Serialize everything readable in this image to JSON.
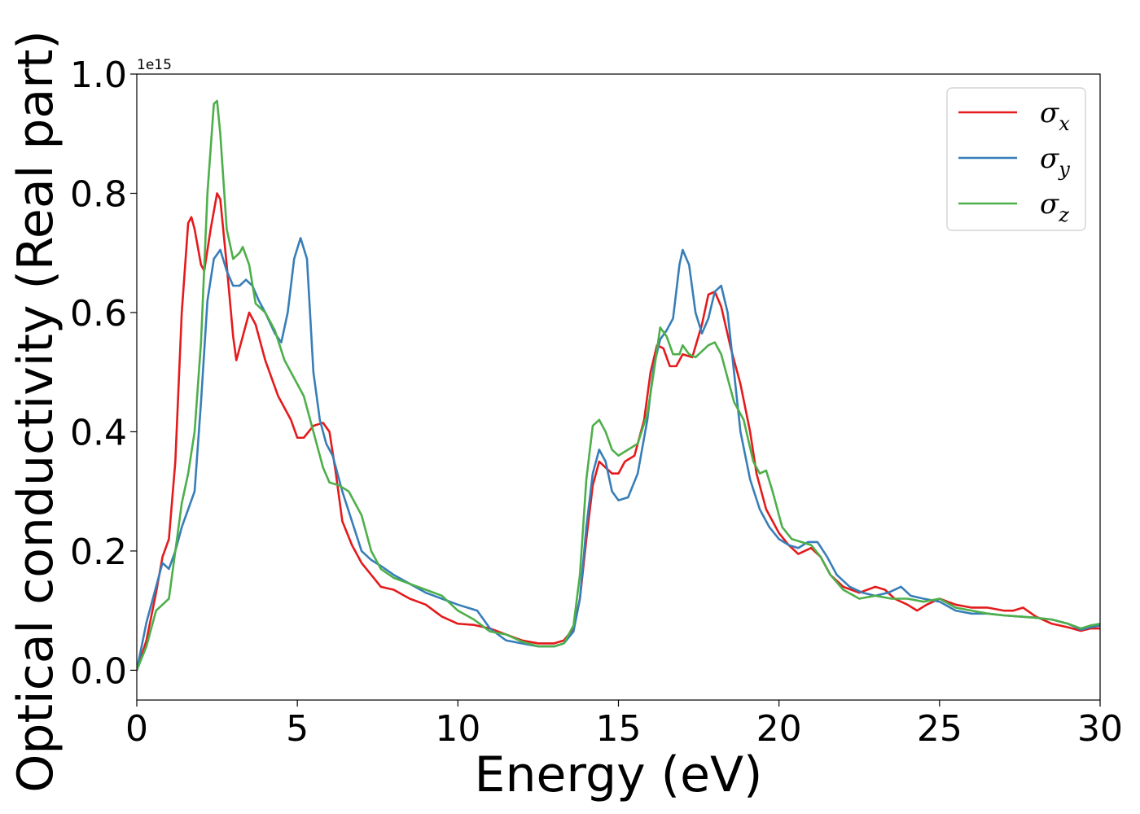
{
  "chart_data": {
    "type": "line",
    "xlabel": "Energy (eV)",
    "ylabel": "Optical conductivity (Real part)",
    "y_offset_label": "1e15",
    "xlim": [
      0,
      30
    ],
    "ylim": [
      -0.05,
      1.0
    ],
    "x_ticks": [
      0,
      5,
      10,
      15,
      20,
      25,
      30
    ],
    "y_ticks": [
      0.0,
      0.2,
      0.4,
      0.6,
      0.8,
      1.0
    ],
    "x_tick_labels": [
      "0",
      "5",
      "10",
      "15",
      "20",
      "25",
      "30"
    ],
    "y_tick_labels": [
      "0.0",
      "0.2",
      "0.4",
      "0.6",
      "0.8",
      "1.0"
    ],
    "grid": false,
    "legend_position": "top-right",
    "series": [
      {
        "name": "σx",
        "legend_base": "σ",
        "legend_sub": "x",
        "color": "#e41a1c",
        "points": [
          [
            0,
            0
          ],
          [
            0.3,
            0.05
          ],
          [
            0.6,
            0.13
          ],
          [
            0.8,
            0.19
          ],
          [
            1.0,
            0.22
          ],
          [
            1.2,
            0.35
          ],
          [
            1.4,
            0.6
          ],
          [
            1.6,
            0.75
          ],
          [
            1.7,
            0.76
          ],
          [
            1.8,
            0.74
          ],
          [
            2.0,
            0.68
          ],
          [
            2.1,
            0.67
          ],
          [
            2.3,
            0.74
          ],
          [
            2.5,
            0.8
          ],
          [
            2.6,
            0.79
          ],
          [
            2.8,
            0.68
          ],
          [
            3.0,
            0.56
          ],
          [
            3.1,
            0.52
          ],
          [
            3.3,
            0.56
          ],
          [
            3.5,
            0.6
          ],
          [
            3.7,
            0.58
          ],
          [
            4.0,
            0.52
          ],
          [
            4.4,
            0.46
          ],
          [
            4.8,
            0.42
          ],
          [
            5.0,
            0.39
          ],
          [
            5.2,
            0.39
          ],
          [
            5.5,
            0.41
          ],
          [
            5.8,
            0.415
          ],
          [
            6.0,
            0.4
          ],
          [
            6.2,
            0.33
          ],
          [
            6.4,
            0.25
          ],
          [
            6.7,
            0.21
          ],
          [
            7.0,
            0.18
          ],
          [
            7.3,
            0.16
          ],
          [
            7.6,
            0.14
          ],
          [
            8.0,
            0.135
          ],
          [
            8.5,
            0.12
          ],
          [
            9.0,
            0.11
          ],
          [
            9.5,
            0.09
          ],
          [
            10.0,
            0.078
          ],
          [
            10.5,
            0.076
          ],
          [
            11.0,
            0.07
          ],
          [
            11.5,
            0.06
          ],
          [
            12.0,
            0.05
          ],
          [
            12.5,
            0.045
          ],
          [
            13.0,
            0.045
          ],
          [
            13.3,
            0.05
          ],
          [
            13.6,
            0.07
          ],
          [
            13.8,
            0.12
          ],
          [
            14.0,
            0.22
          ],
          [
            14.2,
            0.31
          ],
          [
            14.4,
            0.35
          ],
          [
            14.6,
            0.34
          ],
          [
            14.8,
            0.33
          ],
          [
            15.0,
            0.33
          ],
          [
            15.2,
            0.35
          ],
          [
            15.5,
            0.36
          ],
          [
            15.8,
            0.42
          ],
          [
            16.0,
            0.5
          ],
          [
            16.2,
            0.545
          ],
          [
            16.4,
            0.54
          ],
          [
            16.6,
            0.51
          ],
          [
            16.8,
            0.51
          ],
          [
            17.0,
            0.53
          ],
          [
            17.3,
            0.525
          ],
          [
            17.6,
            0.58
          ],
          [
            17.8,
            0.63
          ],
          [
            18.0,
            0.635
          ],
          [
            18.2,
            0.61
          ],
          [
            18.5,
            0.54
          ],
          [
            18.8,
            0.48
          ],
          [
            19.1,
            0.4
          ],
          [
            19.3,
            0.33
          ],
          [
            19.6,
            0.27
          ],
          [
            20.0,
            0.23
          ],
          [
            20.3,
            0.21
          ],
          [
            20.6,
            0.195
          ],
          [
            21.0,
            0.205
          ],
          [
            21.3,
            0.19
          ],
          [
            21.6,
            0.16
          ],
          [
            22.0,
            0.14
          ],
          [
            22.5,
            0.13
          ],
          [
            23.0,
            0.14
          ],
          [
            23.3,
            0.135
          ],
          [
            23.6,
            0.12
          ],
          [
            24.0,
            0.11
          ],
          [
            24.3,
            0.1
          ],
          [
            24.6,
            0.11
          ],
          [
            25.0,
            0.12
          ],
          [
            25.5,
            0.11
          ],
          [
            26.0,
            0.105
          ],
          [
            26.5,
            0.105
          ],
          [
            27.0,
            0.1
          ],
          [
            27.3,
            0.1
          ],
          [
            27.6,
            0.105
          ],
          [
            28.0,
            0.09
          ],
          [
            28.5,
            0.078
          ],
          [
            29.0,
            0.072
          ],
          [
            29.4,
            0.066
          ],
          [
            29.7,
            0.07
          ],
          [
            30.0,
            0.07
          ]
        ]
      },
      {
        "name": "σy",
        "legend_base": "σ",
        "legend_sub": "y",
        "color": "#377eb8",
        "points": [
          [
            0,
            0
          ],
          [
            0.3,
            0.08
          ],
          [
            0.6,
            0.14
          ],
          [
            0.8,
            0.18
          ],
          [
            1.0,
            0.17
          ],
          [
            1.2,
            0.2
          ],
          [
            1.4,
            0.24
          ],
          [
            1.6,
            0.27
          ],
          [
            1.8,
            0.3
          ],
          [
            2.0,
            0.45
          ],
          [
            2.2,
            0.62
          ],
          [
            2.4,
            0.69
          ],
          [
            2.6,
            0.705
          ],
          [
            2.8,
            0.67
          ],
          [
            3.0,
            0.645
          ],
          [
            3.2,
            0.645
          ],
          [
            3.4,
            0.655
          ],
          [
            3.6,
            0.645
          ],
          [
            3.8,
            0.62
          ],
          [
            4.0,
            0.6
          ],
          [
            4.3,
            0.565
          ],
          [
            4.5,
            0.55
          ],
          [
            4.7,
            0.6
          ],
          [
            4.9,
            0.69
          ],
          [
            5.1,
            0.725
          ],
          [
            5.3,
            0.69
          ],
          [
            5.5,
            0.5
          ],
          [
            5.7,
            0.42
          ],
          [
            5.9,
            0.38
          ],
          [
            6.1,
            0.36
          ],
          [
            6.4,
            0.3
          ],
          [
            6.7,
            0.25
          ],
          [
            7.0,
            0.2
          ],
          [
            7.3,
            0.185
          ],
          [
            7.6,
            0.175
          ],
          [
            8.0,
            0.16
          ],
          [
            8.5,
            0.145
          ],
          [
            9.0,
            0.13
          ],
          [
            9.5,
            0.12
          ],
          [
            10.0,
            0.11
          ],
          [
            10.3,
            0.105
          ],
          [
            10.6,
            0.1
          ],
          [
            11.0,
            0.07
          ],
          [
            11.5,
            0.05
          ],
          [
            12.0,
            0.045
          ],
          [
            12.5,
            0.04
          ],
          [
            13.0,
            0.04
          ],
          [
            13.3,
            0.045
          ],
          [
            13.6,
            0.065
          ],
          [
            13.8,
            0.12
          ],
          [
            14.0,
            0.24
          ],
          [
            14.2,
            0.33
          ],
          [
            14.4,
            0.37
          ],
          [
            14.6,
            0.35
          ],
          [
            14.8,
            0.3
          ],
          [
            15.0,
            0.285
          ],
          [
            15.3,
            0.29
          ],
          [
            15.6,
            0.33
          ],
          [
            15.9,
            0.42
          ],
          [
            16.1,
            0.51
          ],
          [
            16.3,
            0.555
          ],
          [
            16.5,
            0.57
          ],
          [
            16.7,
            0.59
          ],
          [
            16.9,
            0.68
          ],
          [
            17.0,
            0.705
          ],
          [
            17.2,
            0.68
          ],
          [
            17.4,
            0.6
          ],
          [
            17.6,
            0.565
          ],
          [
            17.8,
            0.59
          ],
          [
            18.0,
            0.635
          ],
          [
            18.2,
            0.645
          ],
          [
            18.4,
            0.6
          ],
          [
            18.6,
            0.5
          ],
          [
            18.8,
            0.4
          ],
          [
            19.1,
            0.32
          ],
          [
            19.4,
            0.27
          ],
          [
            19.7,
            0.24
          ],
          [
            20.0,
            0.22
          ],
          [
            20.3,
            0.21
          ],
          [
            20.6,
            0.205
          ],
          [
            20.9,
            0.215
          ],
          [
            21.2,
            0.215
          ],
          [
            21.5,
            0.19
          ],
          [
            21.8,
            0.16
          ],
          [
            22.2,
            0.14
          ],
          [
            22.6,
            0.13
          ],
          [
            23.0,
            0.125
          ],
          [
            23.4,
            0.13
          ],
          [
            23.8,
            0.14
          ],
          [
            24.1,
            0.125
          ],
          [
            24.5,
            0.12
          ],
          [
            25.0,
            0.115
          ],
          [
            25.5,
            0.1
          ],
          [
            26.0,
            0.095
          ],
          [
            26.5,
            0.095
          ],
          [
            27.0,
            0.092
          ],
          [
            27.5,
            0.09
          ],
          [
            28.0,
            0.088
          ],
          [
            28.5,
            0.085
          ],
          [
            29.0,
            0.078
          ],
          [
            29.4,
            0.068
          ],
          [
            29.7,
            0.072
          ],
          [
            30.0,
            0.075
          ]
        ]
      },
      {
        "name": "σz",
        "legend_base": "σ",
        "legend_sub": "z",
        "color": "#4daf4a",
        "points": [
          [
            0,
            0
          ],
          [
            0.3,
            0.04
          ],
          [
            0.6,
            0.1
          ],
          [
            0.8,
            0.11
          ],
          [
            1.0,
            0.12
          ],
          [
            1.2,
            0.2
          ],
          [
            1.4,
            0.28
          ],
          [
            1.6,
            0.33
          ],
          [
            1.8,
            0.4
          ],
          [
            2.0,
            0.55
          ],
          [
            2.2,
            0.8
          ],
          [
            2.4,
            0.95
          ],
          [
            2.5,
            0.955
          ],
          [
            2.6,
            0.9
          ],
          [
            2.8,
            0.74
          ],
          [
            3.0,
            0.69
          ],
          [
            3.2,
            0.7
          ],
          [
            3.3,
            0.71
          ],
          [
            3.5,
            0.68
          ],
          [
            3.7,
            0.615
          ],
          [
            4.0,
            0.6
          ],
          [
            4.3,
            0.57
          ],
          [
            4.6,
            0.52
          ],
          [
            4.9,
            0.49
          ],
          [
            5.2,
            0.46
          ],
          [
            5.5,
            0.4
          ],
          [
            5.8,
            0.34
          ],
          [
            6.0,
            0.315
          ],
          [
            6.3,
            0.31
          ],
          [
            6.6,
            0.3
          ],
          [
            7.0,
            0.26
          ],
          [
            7.3,
            0.2
          ],
          [
            7.6,
            0.17
          ],
          [
            8.0,
            0.155
          ],
          [
            8.5,
            0.145
          ],
          [
            9.0,
            0.135
          ],
          [
            9.5,
            0.125
          ],
          [
            10.0,
            0.1
          ],
          [
            10.5,
            0.085
          ],
          [
            11.0,
            0.065
          ],
          [
            11.5,
            0.06
          ],
          [
            12.0,
            0.048
          ],
          [
            12.5,
            0.04
          ],
          [
            13.0,
            0.04
          ],
          [
            13.3,
            0.045
          ],
          [
            13.6,
            0.075
          ],
          [
            13.8,
            0.16
          ],
          [
            14.0,
            0.32
          ],
          [
            14.2,
            0.41
          ],
          [
            14.4,
            0.42
          ],
          [
            14.6,
            0.4
          ],
          [
            14.8,
            0.37
          ],
          [
            15.0,
            0.36
          ],
          [
            15.3,
            0.37
          ],
          [
            15.6,
            0.38
          ],
          [
            15.9,
            0.43
          ],
          [
            16.1,
            0.5
          ],
          [
            16.3,
            0.575
          ],
          [
            16.5,
            0.56
          ],
          [
            16.7,
            0.53
          ],
          [
            16.9,
            0.53
          ],
          [
            17.0,
            0.545
          ],
          [
            17.2,
            0.53
          ],
          [
            17.4,
            0.525
          ],
          [
            17.6,
            0.535
          ],
          [
            17.8,
            0.545
          ],
          [
            18.0,
            0.55
          ],
          [
            18.2,
            0.53
          ],
          [
            18.4,
            0.49
          ],
          [
            18.6,
            0.45
          ],
          [
            18.9,
            0.42
          ],
          [
            19.2,
            0.35
          ],
          [
            19.4,
            0.33
          ],
          [
            19.6,
            0.335
          ],
          [
            19.8,
            0.3
          ],
          [
            20.1,
            0.24
          ],
          [
            20.4,
            0.22
          ],
          [
            20.7,
            0.215
          ],
          [
            21.0,
            0.21
          ],
          [
            21.3,
            0.19
          ],
          [
            21.6,
            0.16
          ],
          [
            22.0,
            0.135
          ],
          [
            22.5,
            0.12
          ],
          [
            23.0,
            0.125
          ],
          [
            23.5,
            0.12
          ],
          [
            24.0,
            0.12
          ],
          [
            24.5,
            0.115
          ],
          [
            25.0,
            0.12
          ],
          [
            25.5,
            0.105
          ],
          [
            26.0,
            0.1
          ],
          [
            26.5,
            0.095
          ],
          [
            27.0,
            0.092
          ],
          [
            27.5,
            0.09
          ],
          [
            28.0,
            0.088
          ],
          [
            28.5,
            0.085
          ],
          [
            29.0,
            0.078
          ],
          [
            29.4,
            0.07
          ],
          [
            29.7,
            0.075
          ],
          [
            30.0,
            0.078
          ]
        ]
      }
    ]
  }
}
